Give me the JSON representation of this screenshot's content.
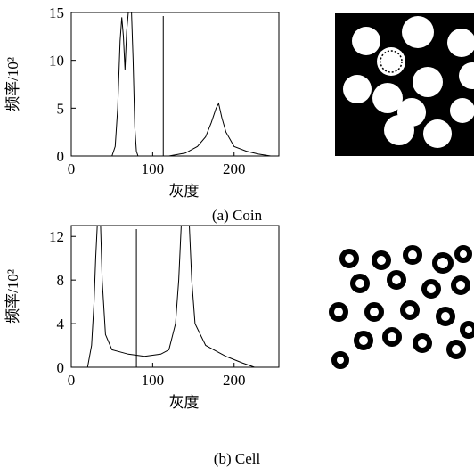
{
  "chart_data": [
    {
      "type": "line",
      "caption": "(a)  Coin",
      "x_label": "灰度",
      "y_label": "频率/10²",
      "x": [
        0,
        50,
        54,
        57,
        60,
        62,
        64,
        66,
        68,
        70,
        74,
        76,
        78,
        80,
        82,
        120,
        140,
        155,
        165,
        172,
        178,
        181,
        185,
        190,
        200,
        215,
        230,
        245,
        255
      ],
      "values": [
        0,
        0,
        1,
        5,
        12,
        14.5,
        12.5,
        9,
        13,
        15,
        15,
        10,
        3,
        0.5,
        0,
        0,
        0.3,
        1,
        2,
        3.5,
        5,
        5.5,
        4,
        2.5,
        1,
        0.5,
        0.2,
        0,
        0
      ],
      "threshold": 113,
      "color": "#000000",
      "xlim": [
        0,
        255
      ],
      "xticks": [
        0,
        100,
        200
      ],
      "ylim": [
        0,
        15
      ],
      "yticks": [
        0,
        5,
        10,
        15
      ]
    },
    {
      "type": "line",
      "caption": "(b)  Cell",
      "x_label": "灰度",
      "y_label": "频率/10²",
      "x": [
        0,
        20,
        25,
        28,
        30,
        32,
        36,
        38,
        42,
        50,
        70,
        90,
        110,
        120,
        128,
        132,
        135,
        145,
        148,
        152,
        165,
        175,
        190,
        210,
        225,
        255
      ],
      "values": [
        0,
        0,
        2,
        6,
        10,
        13,
        13,
        8,
        3,
        1.6,
        1.2,
        1,
        1.2,
        1.6,
        4,
        8,
        13,
        13,
        8,
        4,
        2,
        1.6,
        1,
        0.4,
        0,
        0
      ],
      "threshold": 80,
      "color": "#000000",
      "xlim": [
        0,
        255
      ],
      "xticks": [
        0,
        100,
        200
      ],
      "ylim": [
        0,
        13
      ],
      "yticks": [
        0,
        4,
        8,
        12
      ]
    }
  ]
}
